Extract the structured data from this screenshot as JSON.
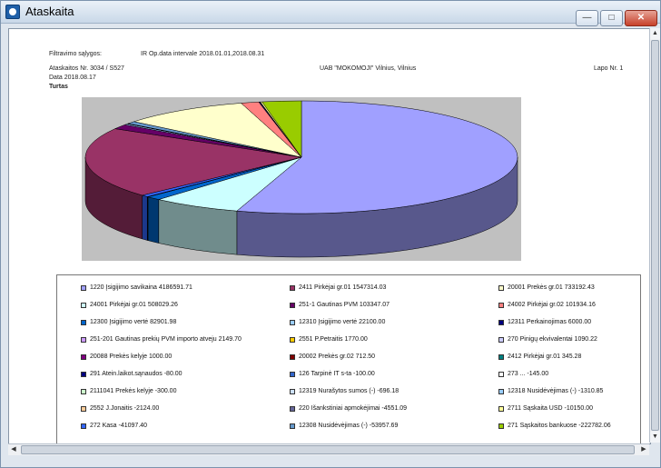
{
  "window": {
    "title": "Ataskaita",
    "min_glyph": "—",
    "max_glyph": "□",
    "close_glyph": "✕"
  },
  "report": {
    "filter_label": "Filtravimo sąlygos:",
    "filter_value": "IR Op.data intervale 2018.01.01,2018.08.31",
    "report_no": "Ataskaitos Nr. 3034 / S527",
    "company": "UAB \"MOKOMOJI\" Vilnius, Vilnius",
    "page": "Lapo Nr. 1",
    "date": "Data 2018.08.17",
    "section": "Turtas"
  },
  "chart_data": {
    "type": "pie",
    "style": "3d",
    "slices": [
      {
        "label": "1220 Įsigijimo savikaina",
        "value": 4186591.71,
        "color": "#a0a0ff"
      },
      {
        "label": "24001 Pirkėjai gr.01",
        "value": 508029.26,
        "color": "#ccffff"
      },
      {
        "label": "12300 Įsigijimo vertė",
        "value": 82901.98,
        "color": "#0066cc"
      },
      {
        "label": "251-201 Gautinas prekių PVM importo atveju",
        "value": 2149.7,
        "color": "#cc99ff"
      },
      {
        "label": "20088 Prekės kelyje",
        "value": 1000.0,
        "color": "#800080"
      },
      {
        "label": "291 Atein.laikot.sąnaudos",
        "value": -80.0,
        "color": "#000080"
      },
      {
        "label": "2111041 Prekės kelyje",
        "value": -300.0,
        "color": "#ccffcc"
      },
      {
        "label": "2552 J.Jonaitis",
        "value": -2124.0,
        "color": "#ffcc99"
      },
      {
        "label": "272 Kasa",
        "value": -41097.4,
        "color": "#3366ff"
      },
      {
        "label": "2411 Pirkėjai gr.01",
        "value": 1547314.03,
        "color": "#993366"
      },
      {
        "label": "251-1 Gautinas PVM",
        "value": 103347.07,
        "color": "#660066"
      },
      {
        "label": "12310 Įsigijimo vertė",
        "value": 22100.0,
        "color": "#99ccff"
      },
      {
        "label": "2551 P.Petraitis",
        "value": 1770.0,
        "color": "#ffcc00"
      },
      {
        "label": "20002 Prekės gr.02",
        "value": 712.5,
        "color": "#800000"
      },
      {
        "label": "126 Tarpinė IT s-ta",
        "value": -100.0,
        "color": "#3366cc"
      },
      {
        "label": "12319 Nurašytos sumos (-)",
        "value": -696.18,
        "color": "#cce0ff"
      },
      {
        "label": "220 Išankstiniai apmokėjimai",
        "value": -4551.09,
        "color": "#666699"
      },
      {
        "label": "12308 Nusidėvėjimas (-)",
        "value": -53957.69,
        "color": "#6699cc"
      },
      {
        "label": "20001 Prekės gr.01",
        "value": 733192.43,
        "color": "#ffffcc"
      },
      {
        "label": "24002 Pirkėjai gr.02",
        "value": 101934.16,
        "color": "#ff8080"
      },
      {
        "label": "12311 Perkainojimas",
        "value": 6000.0,
        "color": "#000080"
      },
      {
        "label": "270 Pinigų ekvivalentai",
        "value": 1090.22,
        "color": "#ccccff"
      },
      {
        "label": "2412 Pirkėjai gr.01",
        "value": 345.28,
        "color": "#008080"
      },
      {
        "label": "273 ...",
        "value": -145.0,
        "color": "#ffffff"
      },
      {
        "label": "12318 Nusidėvėjimas (-)",
        "value": -1310.85,
        "color": "#99ccff"
      },
      {
        "label": "2711 Sąskaita USD",
        "value": -10150.0,
        "color": "#ffff99"
      },
      {
        "label": "271 Sąskaitos bankuose",
        "value": -222782.06,
        "color": "#99cc00"
      }
    ]
  },
  "legend": [
    {
      "label": "1220 Įsigijimo savikaina",
      "value": "4186591.71",
      "color": "#a0a0ff"
    },
    {
      "label": "2411 Pirkėjai gr.01",
      "value": "1547314.03",
      "color": "#993366"
    },
    {
      "label": "20001 Prekės gr.01",
      "value": "733192.43",
      "color": "#ffffcc"
    },
    {
      "label": "24001 Pirkėjai gr.01",
      "value": "508029.26",
      "color": "#ccffff"
    },
    {
      "label": "251-1 Gautinas PVM",
      "value": "103347.07",
      "color": "#660066"
    },
    {
      "label": "24002 Pirkėjai gr.02",
      "value": "101934.16",
      "color": "#ff8080"
    },
    {
      "label": "12300 Įsigijimo vertė",
      "value": "82901.98",
      "color": "#0066cc"
    },
    {
      "label": "12310 Įsigijimo vertė",
      "value": "22100.00",
      "color": "#99ccff"
    },
    {
      "label": "12311 Perkainojimas",
      "value": "6000.00",
      "color": "#000080"
    },
    {
      "label": "251-201 Gautinas prekių PVM importo atveju",
      "value": "2149.70",
      "color": "#cc99ff"
    },
    {
      "label": "2551 P.Petraitis",
      "value": "1770.00",
      "color": "#ffcc00"
    },
    {
      "label": "270 Pinigų ekvivalentai",
      "value": "1090.22",
      "color": "#ccccff"
    },
    {
      "label": "20088 Prekės kelyje",
      "value": "1000.00",
      "color": "#800080"
    },
    {
      "label": "20002 Prekės gr.02",
      "value": "712.50",
      "color": "#800000"
    },
    {
      "label": "2412 Pirkėjai gr.01",
      "value": "345.28",
      "color": "#008080"
    },
    {
      "label": "291 Atein.laikot.sąnaudos",
      "value": "-80.00",
      "color": "#000080"
    },
    {
      "label": "126 Tarpinė IT s-ta",
      "value": "-100.00",
      "color": "#3366cc"
    },
    {
      "label": "273 ...",
      "value": "-145.00",
      "color": "#ffffff"
    },
    {
      "label": "2111041 Prekės kelyje",
      "value": "-300.00",
      "color": "#ccffcc"
    },
    {
      "label": "12319 Nurašytos sumos (-)",
      "value": "-696.18",
      "color": "#cce0ff"
    },
    {
      "label": "12318 Nusidėvėjimas (-)",
      "value": "-1310.85",
      "color": "#99ccff"
    },
    {
      "label": "2552 J.Jonaitis",
      "value": "-2124.00",
      "color": "#ffcc99"
    },
    {
      "label": "220 Išankstiniai apmokėjimai",
      "value": "-4551.09",
      "color": "#666699"
    },
    {
      "label": "2711 Sąskaita USD",
      "value": "-10150.00",
      "color": "#ffff99"
    },
    {
      "label": "272 Kasa",
      "value": "-41097.40",
      "color": "#3366ff"
    },
    {
      "label": "12308 Nusidėvėjimas (-)",
      "value": "-53957.69",
      "color": "#6699cc"
    },
    {
      "label": "271 Sąskaitos bankuose",
      "value": "-222782.06",
      "color": "#99cc00"
    }
  ],
  "scroll": {
    "up": "▲",
    "down": "▼",
    "left": "◀",
    "right": "▶"
  }
}
